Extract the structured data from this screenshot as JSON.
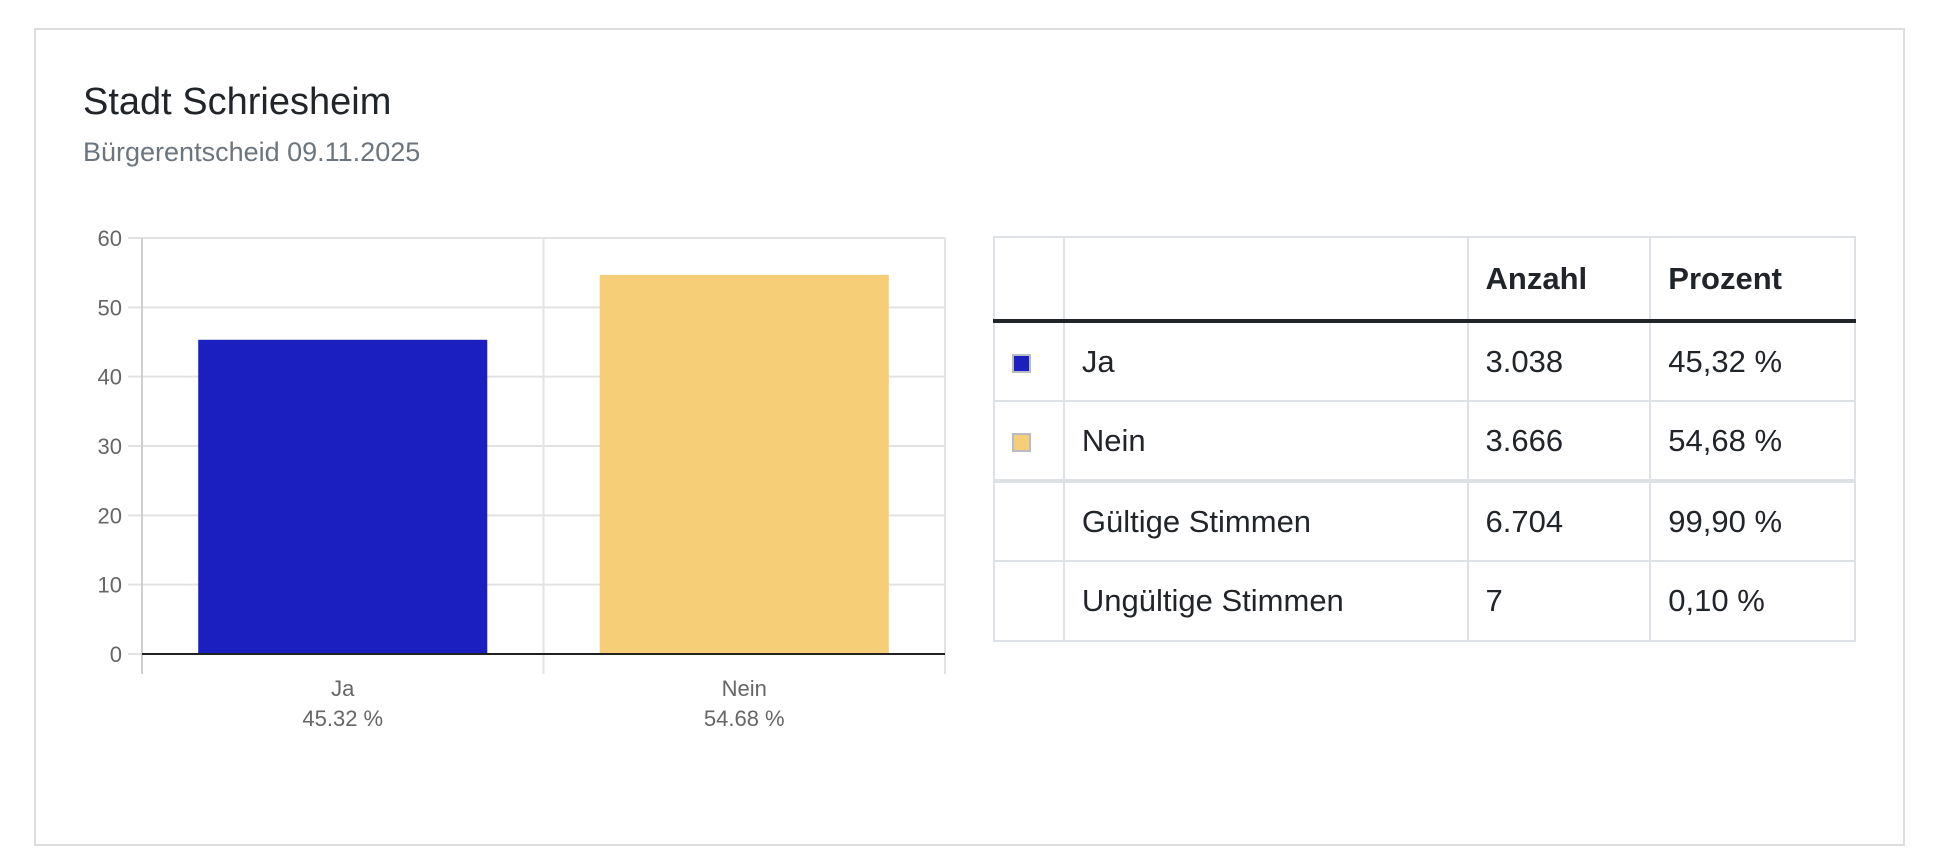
{
  "header": {
    "title": "Stadt Schriesheim",
    "subtitle": "Bürgerentscheid 09.11.2025"
  },
  "chart_data": {
    "type": "bar",
    "categories": [
      "Ja",
      "Nein"
    ],
    "values": [
      45.32,
      54.68
    ],
    "category_labels": [
      "Ja",
      "Nein"
    ],
    "value_labels": [
      "45.32 %",
      "54.68 %"
    ],
    "colors": [
      "#1b1fc0",
      "#f5ce77"
    ],
    "ylim": [
      0,
      60
    ],
    "yticks": [
      0,
      10,
      20,
      30,
      40,
      50,
      60
    ],
    "xlabel": "",
    "ylabel": "",
    "grid": true
  },
  "table": {
    "headers": [
      "",
      "",
      "Anzahl",
      "Prozent"
    ],
    "rows": [
      {
        "color": "#1b1fc0",
        "label": "Ja",
        "count": "3.038",
        "percent": "45,32 %"
      },
      {
        "color": "#f5ce77",
        "label": "Nein",
        "count": "3.666",
        "percent": "54,68 %"
      },
      {
        "color": "",
        "label": "Gültige Stimmen",
        "count": "6.704",
        "percent": "99,90 %"
      },
      {
        "color": "",
        "label": "Ungültige Stimmen",
        "count": "7",
        "percent": "0,10 %"
      }
    ]
  }
}
